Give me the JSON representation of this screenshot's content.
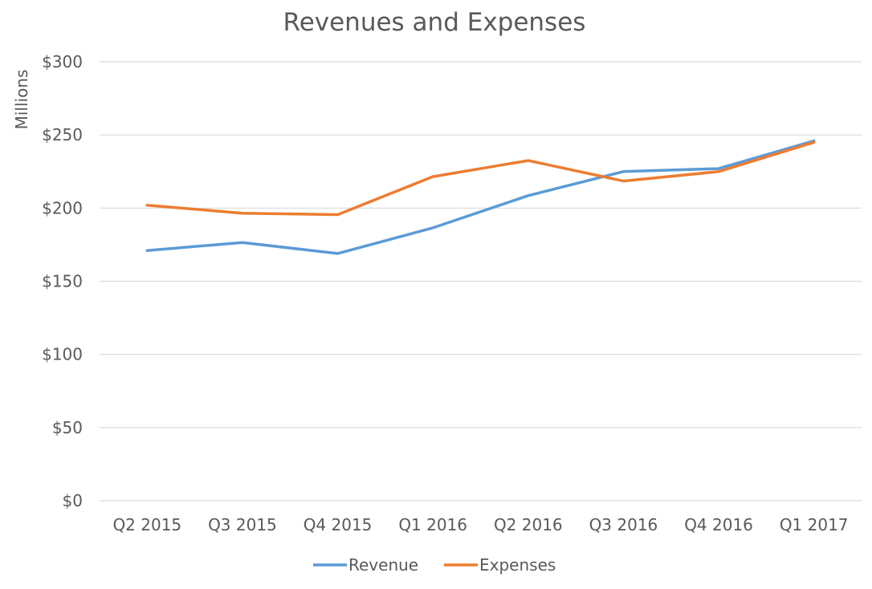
{
  "chart_data": {
    "type": "line",
    "title": "Revenues and Expenses",
    "xlabel": "",
    "ylabel": "Millions",
    "categories": [
      "Q2 2015",
      "Q3 2015",
      "Q4 2015",
      "Q1 2016",
      "Q2 2016",
      "Q3 2016",
      "Q4 2016",
      "Q1 2017"
    ],
    "series": [
      {
        "name": "Revenue",
        "color": "#5B9BD5",
        "values": [
          171,
          176.5,
          169,
          186.5,
          208.5,
          225,
          227,
          246
        ]
      },
      {
        "name": "Expenses",
        "color": "#ED7D31",
        "values": [
          202,
          196.5,
          195.5,
          221.5,
          232.5,
          218.5,
          225,
          245
        ]
      }
    ],
    "ylim": [
      0,
      300
    ],
    "yticks": [
      0,
      50,
      100,
      150,
      200,
      250,
      300
    ],
    "ytick_labels": [
      "$0",
      "$50",
      "$100",
      "$150",
      "$200",
      "$250",
      "$300"
    ],
    "grid": true,
    "legend_position": "bottom",
    "gridline_color": "#D9D9D9"
  }
}
